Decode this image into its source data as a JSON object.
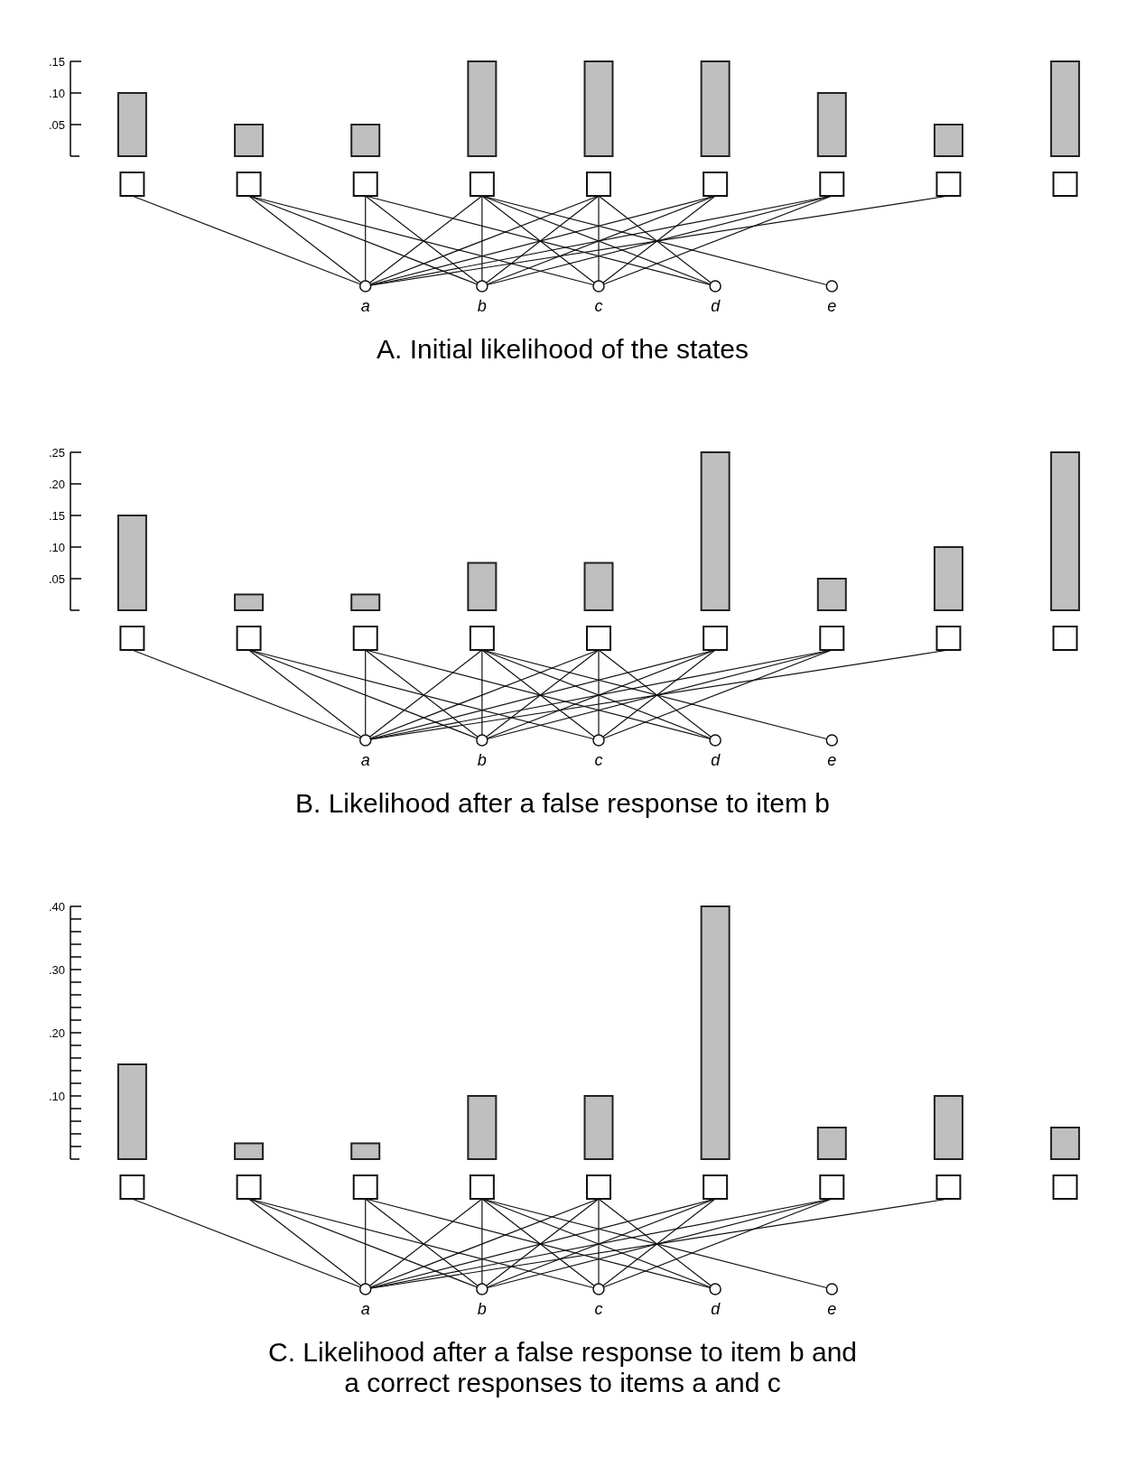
{
  "chart_data": [
    {
      "type": "bar",
      "title": "A. Initial likelihood of the states",
      "categories": [
        null,
        null,
        null,
        null,
        null,
        null,
        null,
        null,
        null
      ],
      "values": [
        0.1,
        0.05,
        0.05,
        0.15,
        0.15,
        0.15,
        0.1,
        0.05,
        0.15
      ],
      "color": "#bfbfbf",
      "ylim": [
        0,
        0.15
      ],
      "yticks": [
        {
          "value": 0.05,
          "label": ".05"
        },
        {
          "value": 0.1,
          "label": ".10"
        },
        {
          "value": 0.15,
          "label": ".15"
        }
      ],
      "tick_labels": "y",
      "grid": false,
      "annotations": [
        "a",
        "b",
        "c",
        "d",
        "e"
      ]
    },
    {
      "type": "bar",
      "title": "B. Likelihood after a false response to item b",
      "categories": [
        null,
        null,
        null,
        null,
        null,
        null,
        null,
        null,
        null
      ],
      "values": [
        0.15,
        0.025,
        0.025,
        0.075,
        0.075,
        0.25,
        0.05,
        0.1,
        0.25
      ],
      "color": "#bfbfbf",
      "ylim": [
        0,
        0.25
      ],
      "yticks": [
        {
          "value": 0.05,
          "label": ".05"
        },
        {
          "value": 0.1,
          "label": ".10"
        },
        {
          "value": 0.15,
          "label": ".15"
        },
        {
          "value": 0.2,
          "label": ".20"
        },
        {
          "value": 0.25,
          "label": ".25"
        }
      ],
      "tick_labels": "y",
      "grid": false,
      "annotations": [
        "a",
        "b",
        "c",
        "d",
        "e"
      ]
    },
    {
      "type": "bar",
      "title": "C. Likelihood after a false response to item b and a correct responses to items a and c",
      "categories": [
        null,
        null,
        null,
        null,
        null,
        null,
        null,
        null,
        null
      ],
      "values": [
        0.15,
        0.025,
        0.025,
        0.1,
        0.1,
        0.4,
        0.05,
        0.1,
        0.05
      ],
      "color": "#bfbfbf",
      "ylim": [
        0,
        0.4
      ],
      "yticks": [
        {
          "value": 0.02,
          "label": null
        },
        {
          "value": 0.04,
          "label": null
        },
        {
          "value": 0.06,
          "label": null
        },
        {
          "value": 0.08,
          "label": null
        },
        {
          "value": 0.1,
          "label": ".10"
        },
        {
          "value": 0.12,
          "label": null
        },
        {
          "value": 0.14,
          "label": null
        },
        {
          "value": 0.16,
          "label": null
        },
        {
          "value": 0.18,
          "label": null
        },
        {
          "value": 0.2,
          "label": ".20"
        },
        {
          "value": 0.22,
          "label": null
        },
        {
          "value": 0.24,
          "label": null
        },
        {
          "value": 0.26,
          "label": null
        },
        {
          "value": 0.28,
          "label": null
        },
        {
          "value": 0.3,
          "label": ".30"
        },
        {
          "value": 0.32,
          "label": null
        },
        {
          "value": 0.34,
          "label": null
        },
        {
          "value": 0.36,
          "label": null
        },
        {
          "value": 0.38,
          "label": null
        },
        {
          "value": 0.4,
          "label": ".40"
        }
      ],
      "tick_labels": "y",
      "grid": false,
      "annotations": [
        "a",
        "b",
        "c",
        "d",
        "e"
      ]
    }
  ]
}
